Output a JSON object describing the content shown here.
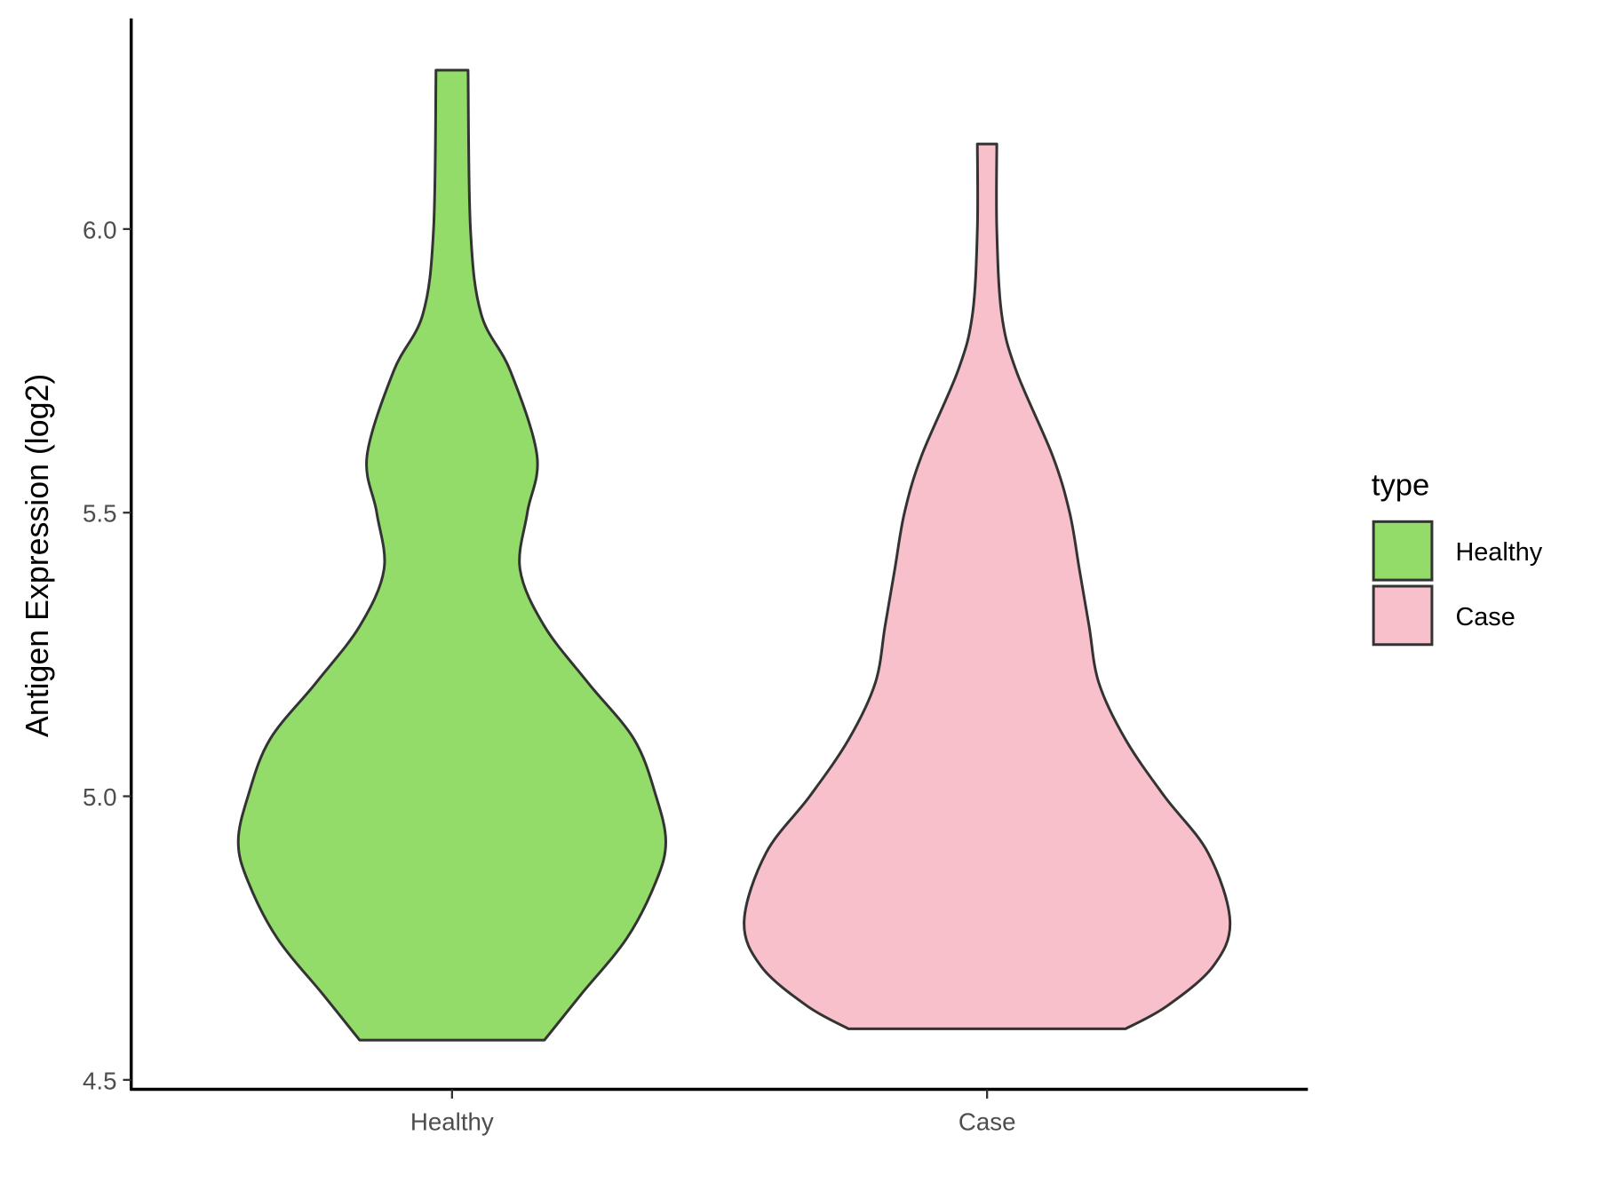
{
  "chart_data": {
    "type": "violin",
    "title": "",
    "xlabel": "",
    "ylabel": "Antigen Expression (log2)",
    "ylim": [
      4.49,
      6.38
    ],
    "yticks": [
      4.5,
      5.0,
      5.5,
      6.0
    ],
    "ytick_labels": [
      "4.5",
      "5.0",
      "5.5",
      "6.0"
    ],
    "categories": [
      "Healthy",
      "Case"
    ],
    "grid": false,
    "legend": {
      "title": "type",
      "position": "right",
      "entries": [
        "Healthy",
        "Case"
      ]
    },
    "series": [
      {
        "name": "Healthy",
        "color": "#93DC6A",
        "min": 4.57,
        "max": 6.28,
        "density_profile": [
          [
            4.57,
            0.38
          ],
          [
            4.65,
            0.53
          ],
          [
            4.75,
            0.72
          ],
          [
            4.85,
            0.84
          ],
          [
            4.92,
            0.88
          ],
          [
            5.0,
            0.84
          ],
          [
            5.1,
            0.75
          ],
          [
            5.2,
            0.56
          ],
          [
            5.3,
            0.38
          ],
          [
            5.4,
            0.28
          ],
          [
            5.5,
            0.31
          ],
          [
            5.6,
            0.35
          ],
          [
            5.75,
            0.24
          ],
          [
            5.85,
            0.12
          ],
          [
            6.0,
            0.076
          ],
          [
            6.28,
            0.066
          ]
        ]
      },
      {
        "name": "Case",
        "color": "#F7C0CB",
        "min": 4.59,
        "max": 6.15,
        "density_profile": [
          [
            4.59,
            0.57
          ],
          [
            4.63,
            0.74
          ],
          [
            4.7,
            0.93
          ],
          [
            4.78,
            1.0
          ],
          [
            4.9,
            0.91
          ],
          [
            5.0,
            0.73
          ],
          [
            5.1,
            0.57
          ],
          [
            5.2,
            0.46
          ],
          [
            5.3,
            0.42
          ],
          [
            5.4,
            0.38
          ],
          [
            5.5,
            0.34
          ],
          [
            5.6,
            0.27
          ],
          [
            5.75,
            0.12
          ],
          [
            5.85,
            0.06
          ],
          [
            6.0,
            0.04
          ],
          [
            6.15,
            0.04
          ]
        ]
      }
    ]
  }
}
